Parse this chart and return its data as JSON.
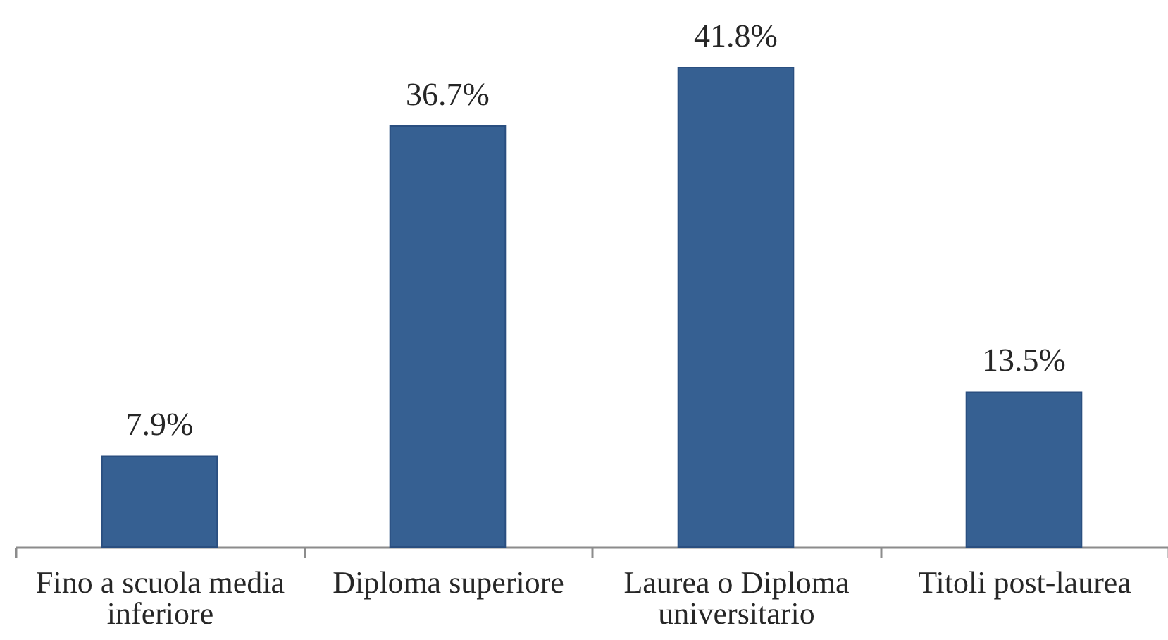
{
  "chart_data": {
    "type": "bar",
    "categories": [
      "Fino a scuola media inferiore",
      "Diploma superiore",
      "Laurea o Diploma universitario",
      "Titoli post-laurea"
    ],
    "values": [
      7.9,
      36.7,
      41.8,
      13.5
    ],
    "value_labels": [
      "7.9%",
      "36.7%",
      "41.8%",
      "13.5%"
    ],
    "color": "#366092",
    "tick_labels": "x"
  }
}
